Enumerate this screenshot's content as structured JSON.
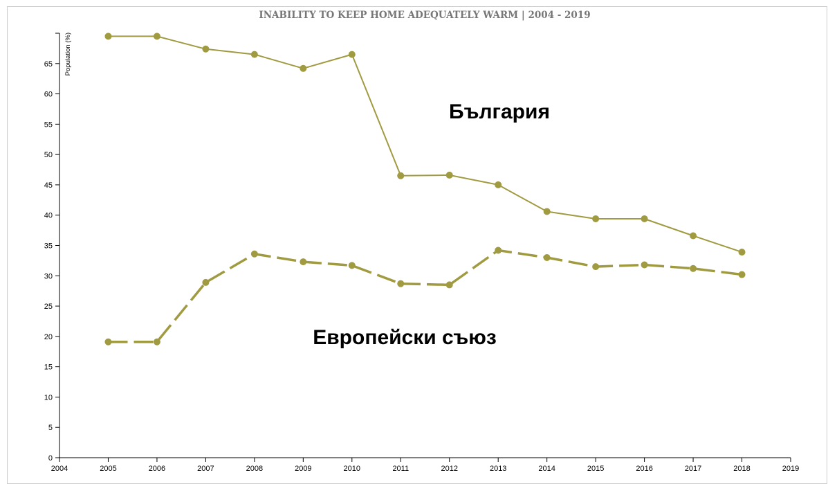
{
  "chart_data": {
    "type": "line",
    "title": "INABILITY TO KEEP HOME ADEQUATELY WARM | 2004 - 2019",
    "xlabel": "",
    "ylabel": "Population (%)",
    "xlim": [
      2004,
      2019
    ],
    "ylim": [
      0,
      70
    ],
    "x_ticks": [
      2004,
      2005,
      2006,
      2007,
      2008,
      2009,
      2010,
      2011,
      2012,
      2013,
      2014,
      2015,
      2016,
      2017,
      2018,
      2019
    ],
    "y_ticks": [
      0,
      5,
      10,
      15,
      20,
      25,
      30,
      35,
      40,
      45,
      50,
      55,
      60,
      65
    ],
    "grid": false,
    "legend": "none",
    "series": [
      {
        "name": "България",
        "line_style": "solid",
        "color": "#a09a40",
        "x": [
          2005,
          2006,
          2007,
          2008,
          2009,
          2010,
          2011,
          2012,
          2013,
          2014,
          2015,
          2016,
          2017,
          2018
        ],
        "values": [
          69.5,
          69.5,
          67.4,
          66.5,
          64.2,
          66.5,
          46.5,
          46.6,
          45.0,
          40.6,
          39.4,
          39.4,
          36.6,
          33.9
        ]
      },
      {
        "name": "Европейски съюз",
        "line_style": "dashed",
        "color": "#a09a40",
        "x": [
          2005,
          2006,
          2007,
          2008,
          2009,
          2010,
          2011,
          2012,
          2013,
          2014,
          2015,
          2016,
          2017,
          2018
        ],
        "values": [
          19.1,
          19.1,
          28.9,
          33.6,
          32.3,
          31.7,
          28.7,
          28.5,
          34.2,
          33.0,
          31.5,
          31.8,
          31.2,
          30.2
        ]
      }
    ]
  }
}
